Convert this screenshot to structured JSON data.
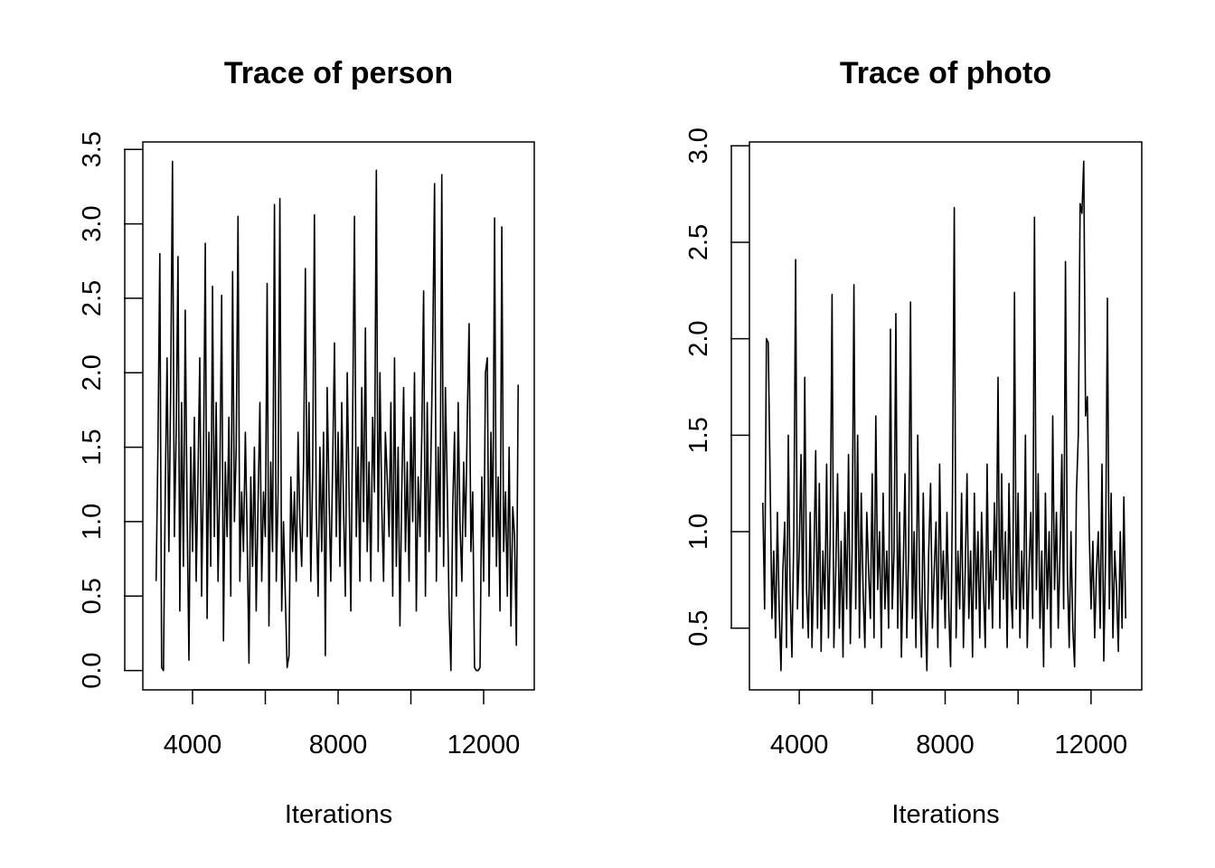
{
  "chart_data": [
    {
      "type": "line",
      "title": "Trace of person",
      "xlabel": "Iterations",
      "ylabel": "",
      "x_start": 3000,
      "x_step": 50,
      "xlim": [
        2634,
        13391
      ],
      "ylim": [
        -0.13,
        3.55
      ],
      "xticks": [
        4000,
        6000,
        8000,
        10000,
        12000
      ],
      "xtick_labels": [
        "4000",
        "",
        "8000",
        "",
        "12000"
      ],
      "yticks": [
        0.0,
        0.5,
        1.0,
        1.5,
        2.0,
        2.5,
        3.0,
        3.5
      ],
      "ytick_labels": [
        "0.0",
        "0.5",
        "1.0",
        "1.5",
        "2.0",
        "2.5",
        "3.0",
        "3.5"
      ],
      "grid": false,
      "color": "#000000",
      "values": [
        0.6,
        1.5,
        2.8,
        0.02,
        0.0,
        1.2,
        2.1,
        0.8,
        1.9,
        3.42,
        0.9,
        1.6,
        2.78,
        0.4,
        1.8,
        0.7,
        2.42,
        1.1,
        0.07,
        1.5,
        0.8,
        1.7,
        0.6,
        1.3,
        2.1,
        0.5,
        1.4,
        2.87,
        0.35,
        1.6,
        0.7,
        2.58,
        0.9,
        1.8,
        0.6,
        1.3,
        2.52,
        0.2,
        1.4,
        0.9,
        1.7,
        0.5,
        2.68,
        1.0,
        1.5,
        3.05,
        0.6,
        1.2,
        0.8,
        1.6,
        0.9,
        0.05,
        1.3,
        0.7,
        1.5,
        0.4,
        1.1,
        1.8,
        0.6,
        1.2,
        0.9,
        2.6,
        0.3,
        1.4,
        0.8,
        3.13,
        0.6,
        1.2,
        3.17,
        0.4,
        1.0,
        0.5,
        0.02,
        0.1,
        1.3,
        0.8,
        1.2,
        0.6,
        1.6,
        1.0,
        0.7,
        1.4,
        2.7,
        0.9,
        1.8,
        0.6,
        1.3,
        3.06,
        1.1,
        0.5,
        1.5,
        0.8,
        1.6,
        0.1,
        1.9,
        1.2,
        0.6,
        1.4,
        2.2,
        0.9,
        1.6,
        0.7,
        1.8,
        1.1,
        0.5,
        2.0,
        1.2,
        0.4,
        1.7,
        3.05,
        0.9,
        1.5,
        0.6,
        1.9,
        1.0,
        2.3,
        0.8,
        1.4,
        0.6,
        1.7,
        1.2,
        3.36,
        0.8,
        2.0,
        1.1,
        0.6,
        1.6,
        1.3,
        0.9,
        1.8,
        0.5,
        2.1,
        0.7,
        1.5,
        0.3,
        1.2,
        1.9,
        0.8,
        1.4,
        0.6,
        1.7,
        1.0,
        2.0,
        0.4,
        1.3,
        0.9,
        1.6,
        2.55,
        0.5,
        1.8,
        0.8,
        1.4,
        2.2,
        3.27,
        0.6,
        1.5,
        0.9,
        3.33,
        0.7,
        1.9,
        1.2,
        0.4,
        0.0,
        1.1,
        1.6,
        0.5,
        1.8,
        1.0,
        0.6,
        1.4,
        0.9,
        1.7,
        2.33,
        0.8,
        1.2,
        0.02,
        0.0,
        0.0,
        0.02,
        1.3,
        0.6,
        2.0,
        2.1,
        0.5,
        1.6,
        0.9,
        3.04,
        0.7,
        1.3,
        0.4,
        2.98,
        0.8,
        1.2,
        0.5,
        1.5,
        0.3,
        1.1,
        0.9,
        0.17,
        1.92
      ]
    },
    {
      "type": "line",
      "title": "Trace of photo",
      "xlabel": "Iterations",
      "ylabel": "",
      "x_start": 3000,
      "x_step": 50,
      "xlim": [
        2634,
        13391
      ],
      "ylim": [
        0.18,
        3.02
      ],
      "xticks": [
        4000,
        6000,
        8000,
        10000,
        12000
      ],
      "xtick_labels": [
        "4000",
        "",
        "8000",
        "",
        "12000"
      ],
      "yticks": [
        0.5,
        1.0,
        1.5,
        2.0,
        2.5,
        3.0
      ],
      "ytick_labels": [
        "0.5",
        "1.0",
        "1.5",
        "2.0",
        "2.5",
        "3.0"
      ],
      "grid": false,
      "color": "#000000",
      "values": [
        1.15,
        0.6,
        2.0,
        1.98,
        1.3,
        0.55,
        0.9,
        0.45,
        1.1,
        0.6,
        0.28,
        0.8,
        1.05,
        0.4,
        1.5,
        0.7,
        0.35,
        1.0,
        2.41,
        0.6,
        0.9,
        1.4,
        0.5,
        1.8,
        0.7,
        0.45,
        1.1,
        0.4,
        0.85,
        1.42,
        0.5,
        1.25,
        0.38,
        0.9,
        0.6,
        1.35,
        0.45,
        1.0,
        2.23,
        0.4,
        0.8,
        1.3,
        0.5,
        0.95,
        0.35,
        1.1,
        0.6,
        1.4,
        0.42,
        0.9,
        2.28,
        0.6,
        1.5,
        0.45,
        1.2,
        0.7,
        0.4,
        1.1,
        0.8,
        0.55,
        1.3,
        0.45,
        1.6,
        0.7,
        1.0,
        0.4,
        1.2,
        0.6,
        0.9,
        0.5,
        2.05,
        0.6,
        0.9,
        2.13,
        0.5,
        1.1,
        0.35,
        0.8,
        1.3,
        0.45,
        0.9,
        2.19,
        0.55,
        1.0,
        0.4,
        1.5,
        0.7,
        0.35,
        1.2,
        0.6,
        0.28,
        0.9,
        1.25,
        0.5,
        0.8,
        1.05,
        0.4,
        1.35,
        0.65,
        0.9,
        0.5,
        1.1,
        0.6,
        0.3,
        1.2,
        2.68,
        0.45,
        0.9,
        0.6,
        1.2,
        0.4,
        0.8,
        1.3,
        0.55,
        0.9,
        0.35,
        1.2,
        0.6,
        1.0,
        0.45,
        1.1,
        0.7,
        0.4,
        1.35,
        0.6,
        0.9,
        0.5,
        1.15,
        0.75,
        1.8,
        0.5,
        1.3,
        0.65,
        1.0,
        0.4,
        1.25,
        0.7,
        0.5,
        2.24,
        0.6,
        1.2,
        0.45,
        0.9,
        0.6,
        1.5,
        0.4,
        0.8,
        1.1,
        0.55,
        2.63,
        0.7,
        1.3,
        0.5,
        0.9,
        0.3,
        1.2,
        0.6,
        1.0,
        0.4,
        1.6,
        0.7,
        1.1,
        0.5,
        0.9,
        1.4,
        0.6,
        2.4,
        0.8,
        0.4,
        1.0,
        0.5,
        0.3,
        1.2,
        1.5,
        2.7,
        2.65,
        2.92,
        1.6,
        1.7,
        1.0,
        0.6,
        0.95,
        0.45,
        0.8,
        1.0,
        0.5,
        1.35,
        0.33,
        0.9,
        2.21,
        0.6,
        1.2,
        0.45,
        0.9,
        0.7,
        0.38,
        1.0,
        0.5,
        1.18,
        0.55
      ]
    }
  ]
}
